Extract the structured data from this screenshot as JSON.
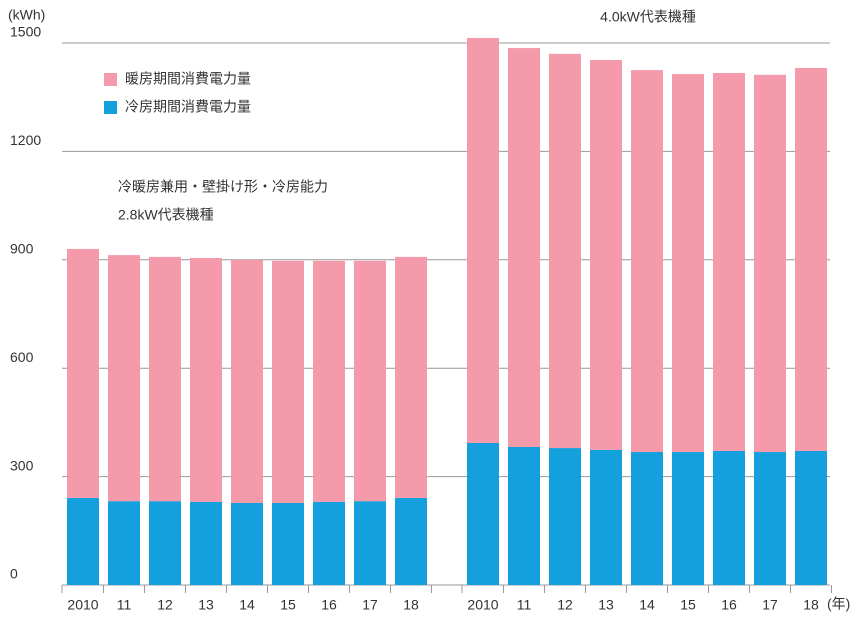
{
  "chart_data": {
    "type": "bar",
    "stacked": true,
    "y_label": "(kWh)",
    "x_label": "(年)",
    "annotations": [
      "冷暖房兼用・壁掛け形・冷房能力",
      "2.8kW代表機種",
      "4.0kW代表機種"
    ],
    "categories": [
      "2010",
      "11",
      "12",
      "13",
      "14",
      "15",
      "16",
      "17",
      "18",
      "2010",
      "11",
      "12",
      "13",
      "14",
      "15",
      "16",
      "17",
      "18"
    ],
    "series": [
      {
        "name": "冷房期間消費電力量",
        "color": "#14a0dc",
        "values": [
          241,
          232,
          232,
          230,
          227,
          227,
          230,
          232,
          241,
          393,
          382,
          379,
          374,
          368,
          368,
          371,
          368,
          371
        ]
      },
      {
        "name": "暖房期間消費電力量",
        "color": "#f49aab",
        "values": [
          689,
          681,
          676,
          675,
          673,
          670,
          667,
          665,
          667,
          1121,
          1104,
          1091,
          1079,
          1057,
          1046,
          1046,
          1044,
          1060
        ]
      }
    ],
    "legend_order": [
      1,
      0
    ],
    "ylim": [
      0,
      1500
    ],
    "yticks": [
      0,
      300,
      600,
      900,
      1200,
      1500
    ],
    "grid": true
  }
}
